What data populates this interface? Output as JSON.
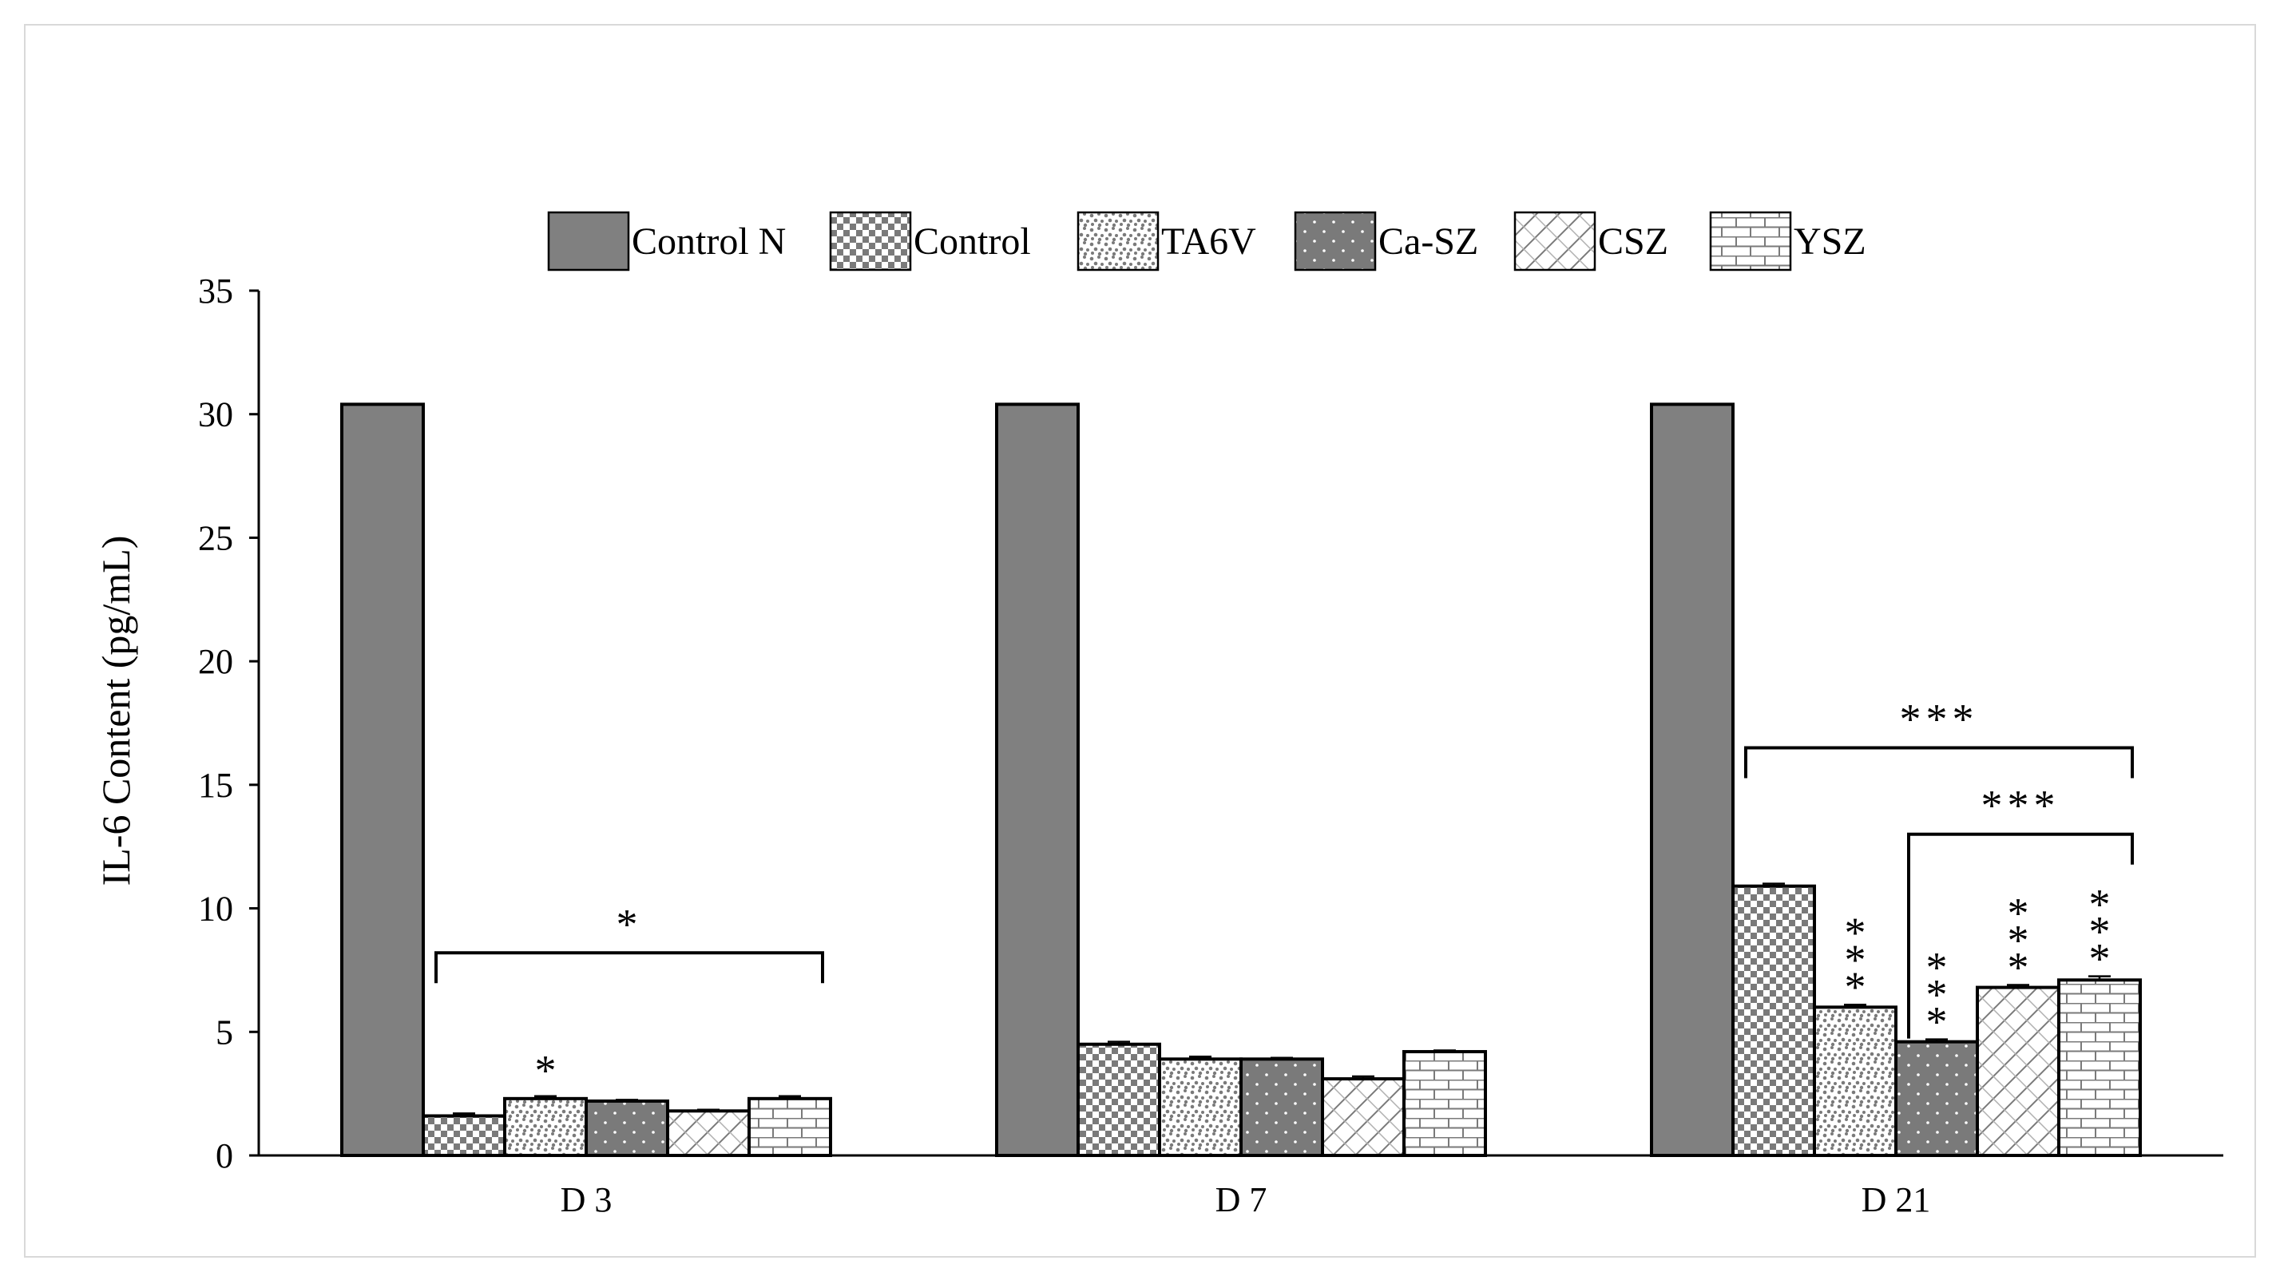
{
  "chart_data": {
    "type": "bar",
    "title": "",
    "xlabel": "",
    "ylabel": "IL-6  Content (pg/mL)",
    "ylim": [
      0,
      35
    ],
    "yticks": [
      0,
      5,
      10,
      15,
      20,
      25,
      30,
      35
    ],
    "categories": [
      "D 3",
      "D 7",
      "D 21"
    ],
    "legend_position": "top",
    "series": [
      {
        "name": "Control N",
        "pattern": "solid",
        "values": [
          30.4,
          30.4,
          30.4
        ],
        "errors": [
          0,
          0,
          0
        ]
      },
      {
        "name": "Control",
        "pattern": "checker",
        "values": [
          1.6,
          4.5,
          10.9
        ],
        "errors": [
          0.1,
          0.1,
          0.1
        ]
      },
      {
        "name": "TA6V",
        "pattern": "speckle",
        "values": [
          2.3,
          3.9,
          6.0
        ],
        "errors": [
          0.1,
          0.1,
          0.1
        ]
      },
      {
        "name": "Ca-SZ",
        "pattern": "dots",
        "values": [
          2.2,
          3.9,
          4.6
        ],
        "errors": [
          0.05,
          0.05,
          0.1
        ]
      },
      {
        "name": "CSZ",
        "pattern": "diagonal",
        "values": [
          1.8,
          3.1,
          6.8
        ],
        "errors": [
          0.05,
          0.1,
          0.1
        ]
      },
      {
        "name": "YSZ",
        "pattern": "brick",
        "values": [
          2.3,
          4.2,
          7.1
        ],
        "errors": [
          0.1,
          0.05,
          0.15
        ]
      }
    ],
    "annotations": {
      "bar_stars": [
        {
          "category": 0,
          "series": 2,
          "text": "*"
        },
        {
          "category": 2,
          "series": 2,
          "text": "***"
        },
        {
          "category": 2,
          "series": 3,
          "text": "***"
        },
        {
          "category": 2,
          "series": 4,
          "text": "***"
        },
        {
          "category": 2,
          "series": 5,
          "text": "***"
        }
      ],
      "brackets": [
        {
          "category": 0,
          "from_series": 1,
          "to_series": 5,
          "y": 8.2,
          "text": "*"
        },
        {
          "category": 2,
          "from_series": 1,
          "to_series": 5,
          "y": 16.5,
          "text": "***"
        },
        {
          "category": 2,
          "from_series": 3,
          "to_series": 5,
          "y": 13,
          "text": "***"
        }
      ]
    }
  },
  "colors": {
    "solid_fill": "#808080",
    "pattern_dark": "#7a7a7a",
    "pattern_light": "#ffffff",
    "stroke": "#000000"
  }
}
